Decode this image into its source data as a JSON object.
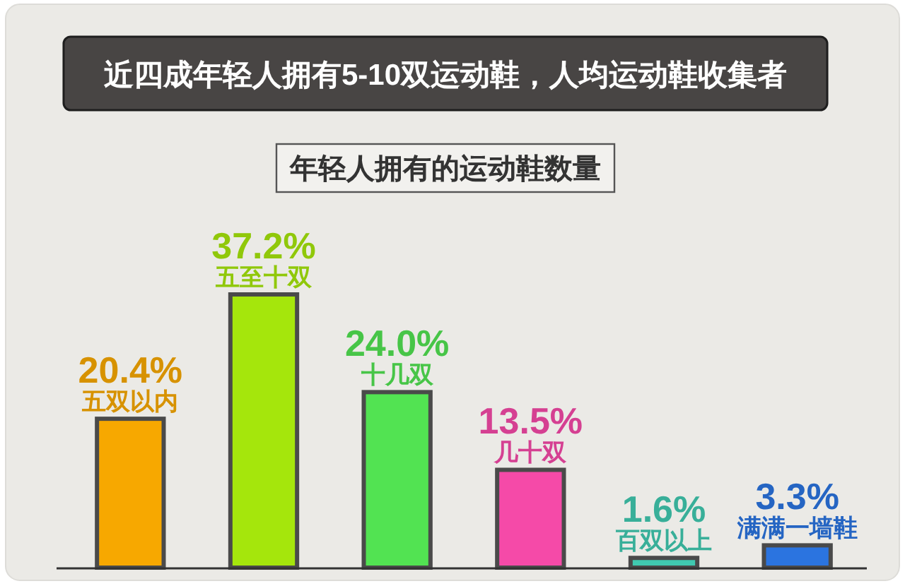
{
  "chart_data": {
    "type": "bar",
    "title": "近四成年轻人拥有5-10双运动鞋，人均运动鞋收集者",
    "subtitle": "年轻人拥有的运动鞋数量",
    "categories": [
      "五双以内",
      "五至十双",
      "十几双",
      "几十双",
      "百双以上",
      "满满一墙鞋"
    ],
    "values": [
      20.4,
      37.2,
      24.0,
      13.5,
      1.6,
      3.3
    ],
    "colors": [
      "#f7a800",
      "#a5e60c",
      "#52e352",
      "#f54aa8",
      "#40c9b0",
      "#2b74e0"
    ],
    "value_labels": [
      "20.4%",
      "37.2%",
      "24.0%",
      "13.5%",
      "1.6%",
      "3.3%"
    ]
  }
}
